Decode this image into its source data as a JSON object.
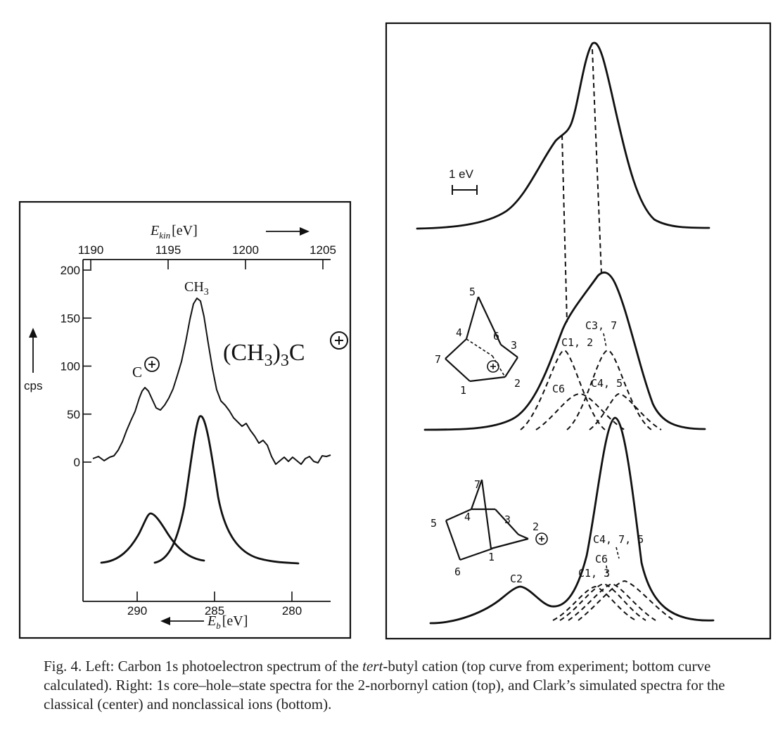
{
  "left_panel": {
    "top_axis": {
      "title_main": "E",
      "title_sub": "kin",
      "unit": "[eV]",
      "ticks": [
        "1190",
        "1195",
        "1200",
        "1205"
      ]
    },
    "left_axis": {
      "ticks": [
        "200",
        "150",
        "100",
        "50",
        "0"
      ],
      "unit_label": "cps"
    },
    "bottom_axis": {
      "title_main": "E",
      "title_sub": "b",
      "unit": "[eV]",
      "ticks": [
        "290",
        "285",
        "280"
      ]
    },
    "peak_labels": {
      "c_plus": "C",
      "ch3_main": "CH",
      "ch3_sub": "3",
      "formula_a": "(CH",
      "formula_b": "3",
      "formula_c": ")",
      "formula_d": "3",
      "formula_e": "C"
    }
  },
  "right_panel": {
    "scale_bar_label": "1 eV",
    "center_labels": [
      "C1, 2",
      "C3, 7",
      "C6",
      "C4, 5"
    ],
    "center_atoms": [
      "5",
      "4",
      "6",
      "3",
      "7",
      "1",
      "2"
    ],
    "bottom_labels": [
      "C2",
      "C1, 3",
      "C6",
      "C4, 7, 5"
    ],
    "bottom_atoms": [
      "7",
      "4",
      "3",
      "5",
      "2",
      "1",
      "6"
    ]
  },
  "caption": {
    "part1": "Fig. 4.  Left: Carbon 1s photoelectron spectrum of the ",
    "italic": "tert",
    "part2": "-butyl cation (top curve from experiment; bottom curve calculated). Right: 1s core–hole–state spectra for the 2-norbornyl cation (top), and Clark’s simulated spectra for the classical (center) and nonclassical ions (bottom)."
  },
  "chart_data": [
    {
      "type": "line",
      "title": "",
      "x_top": {
        "title": "E kin [eV]",
        "range": [
          1189.5,
          1205.5
        ],
        "ticks": [
          1190,
          1195,
          1200,
          1205
        ]
      },
      "x_bottom": {
        "title": "E b [eV]",
        "range": [
          293.5,
          277.5
        ],
        "ticks": [
          290,
          285,
          280
        ]
      },
      "y": {
        "title": "cps",
        "range": [
          0,
          200
        ],
        "ticks": [
          0,
          50,
          100,
          150,
          200
        ]
      },
      "series": [
        {
          "points_x_kin": [
            1190,
            1192,
            1193.8,
            1195,
            1196,
            1196.9,
            1198,
            1199.5,
            1201,
            1203,
            1205
          ],
          "points_y": [
            2,
            30,
            78,
            65,
            110,
            172,
            90,
            40,
            20,
            5,
            2
          ]
        }
      ],
      "peak_annotations": [
        "C+",
        "CH3",
        "(CH3)3C+"
      ]
    }
  ]
}
